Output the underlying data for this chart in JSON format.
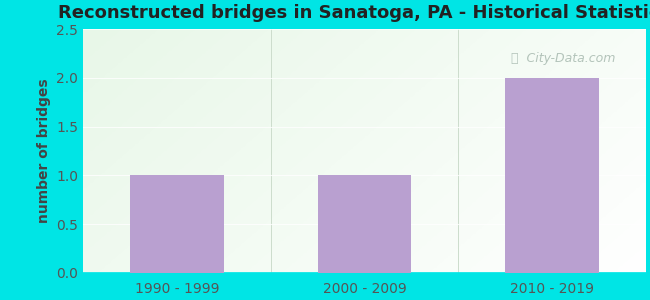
{
  "title": "Reconstructed bridges in Sanatoga, PA - Historical Statistics",
  "categories": [
    "1990 - 1999",
    "2000 - 2009",
    "2010 - 2019"
  ],
  "values": [
    1,
    1,
    2
  ],
  "bar_color": "#b9a0d0",
  "ylabel": "number of bridges",
  "ylim": [
    0,
    2.5
  ],
  "yticks": [
    0,
    0.5,
    1,
    1.5,
    2,
    2.5
  ],
  "bg_outer": "#00e5e5",
  "bg_plot_color": "#d8f0d8",
  "title_fontsize": 13,
  "tick_fontsize": 10,
  "ylabel_fontsize": 10,
  "watermark_text": "City-Data.com",
  "watermark_color": "#a8bab0",
  "title_color": "#222222",
  "tick_color": "#555555",
  "ylabel_color": "#444444",
  "grid_color": "#e0ece0"
}
